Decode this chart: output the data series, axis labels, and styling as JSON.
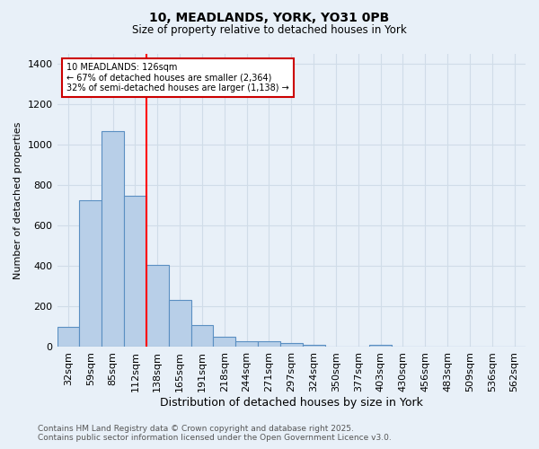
{
  "title_line1": "10, MEADLANDS, YORK, YO31 0PB",
  "title_line2": "Size of property relative to detached houses in York",
  "xlabel": "Distribution of detached houses by size in York",
  "ylabel": "Number of detached properties",
  "categories": [
    "32sqm",
    "59sqm",
    "85sqm",
    "112sqm",
    "138sqm",
    "165sqm",
    "191sqm",
    "218sqm",
    "244sqm",
    "271sqm",
    "297sqm",
    "324sqm",
    "350sqm",
    "377sqm",
    "403sqm",
    "430sqm",
    "456sqm",
    "483sqm",
    "509sqm",
    "536sqm",
    "562sqm"
  ],
  "values": [
    100,
    725,
    1070,
    750,
    405,
    235,
    110,
    50,
    27,
    30,
    22,
    10,
    0,
    0,
    10,
    0,
    0,
    0,
    0,
    0,
    0
  ],
  "bar_color": "#b8cfe8",
  "bar_edge_color": "#5a8fc2",
  "redline_x": 3.5,
  "annotation_label": "10 MEADLANDS: 126sqm",
  "annotation_line2": "← 67% of detached houses are smaller (2,364)",
  "annotation_line3": "32% of semi-detached houses are larger (1,138) →",
  "annotation_box_color": "#ffffff",
  "annotation_box_edge": "#cc0000",
  "ylim": [
    0,
    1450
  ],
  "yticks": [
    0,
    200,
    400,
    600,
    800,
    1000,
    1200,
    1400
  ],
  "grid_color": "#d0dce8",
  "background_color": "#e8f0f8",
  "footer_line1": "Contains HM Land Registry data © Crown copyright and database right 2025.",
  "footer_line2": "Contains public sector information licensed under the Open Government Licence v3.0."
}
